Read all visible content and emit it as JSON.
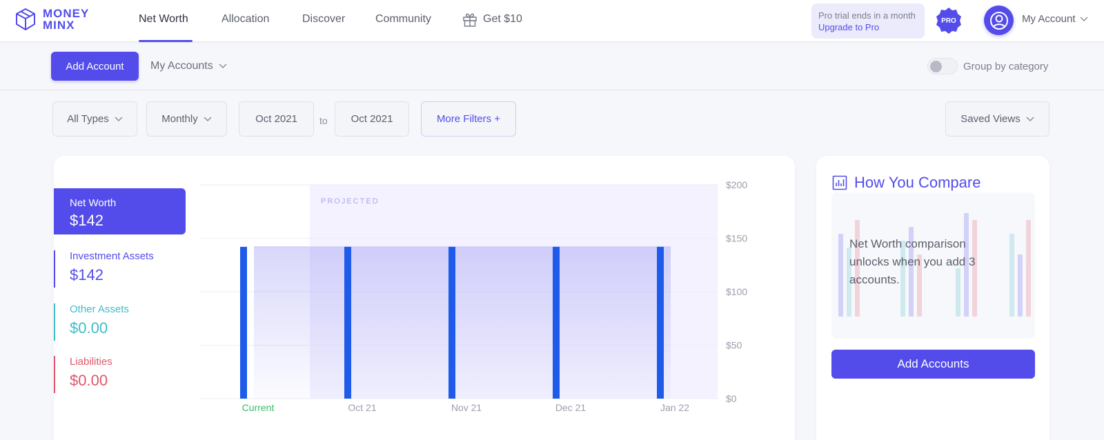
{
  "logo": {
    "line1": "MONEY",
    "line2": "MINX"
  },
  "nav": {
    "items": [
      {
        "label": "Net Worth"
      },
      {
        "label": "Allocation"
      },
      {
        "label": "Discover"
      },
      {
        "label": "Community"
      }
    ],
    "gift_label": "Get $10"
  },
  "trial": {
    "line1": "Pro trial ends in a month",
    "line2": "Upgrade to Pro"
  },
  "pro_badge": "PRO",
  "account_label": "My Account",
  "subbar": {
    "add_account": "Add Account",
    "my_accounts": "My Accounts",
    "group_by": "Group by category",
    "group_by_on": false
  },
  "filters": {
    "types": "All Types",
    "interval": "Monthly",
    "from": "Oct 2021",
    "to_label": "to",
    "to": "Oct 2021",
    "more": "More Filters +",
    "saved_views": "Saved Views"
  },
  "summary": {
    "net_worth": {
      "label": "Net Worth",
      "value": "$142"
    },
    "investment": {
      "label": "Investment Assets",
      "value": "$142"
    },
    "other": {
      "label": "Other Assets",
      "value": "$0.00"
    },
    "liabilities": {
      "label": "Liabilities",
      "value": "$0.00"
    }
  },
  "colors": {
    "accent": "#534cea",
    "bar": "#1f5bea",
    "investment": "#534cea",
    "other": "#3fbcc8",
    "liabilities": "#e0566b",
    "current_label": "#3cb96a"
  },
  "chart_data": {
    "type": "bar",
    "categories": [
      "Current",
      "Oct 21",
      "Nov 21",
      "Dec 21",
      "Jan 22"
    ],
    "values": [
      142,
      142,
      142,
      142,
      142
    ],
    "ylim": [
      0,
      200
    ],
    "yticks": [
      "$0",
      "$50",
      "$100",
      "$150",
      "$200"
    ],
    "annotation": "PROJECTED",
    "projected_from": "Oct 21",
    "grid": true,
    "xlabel": "",
    "ylabel": ""
  },
  "compare": {
    "title": "How You Compare",
    "message": "Net Worth comparison unlocks when you add 3 accounts.",
    "button": "Add Accounts"
  }
}
